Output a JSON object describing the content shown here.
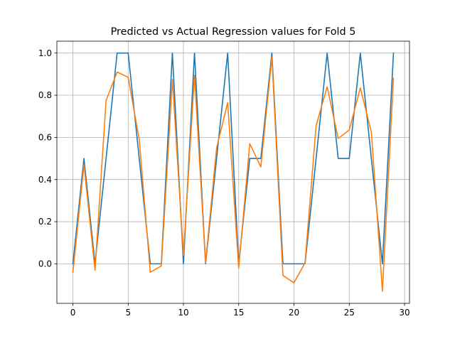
{
  "chart_data": {
    "type": "line",
    "title": "Predicted vs Actual Regression values for Fold 5",
    "xlabel": "",
    "ylabel": "",
    "xlim": [
      -1.45,
      30.45
    ],
    "ylim": [
      -0.1875,
      1.0563
    ],
    "grid": true,
    "x": [
      0,
      1,
      2,
      3,
      4,
      5,
      6,
      7,
      8,
      9,
      10,
      11,
      12,
      13,
      14,
      15,
      16,
      17,
      18,
      19,
      20,
      21,
      22,
      23,
      24,
      25,
      26,
      27,
      28,
      29
    ],
    "x_ticks": [
      0,
      5,
      10,
      15,
      20,
      25,
      30
    ],
    "x_tick_labels": [
      "0",
      "5",
      "10",
      "15",
      "20",
      "25",
      "30"
    ],
    "y_ticks": [
      0.0,
      0.2,
      0.4,
      0.6,
      0.8,
      1.0
    ],
    "y_tick_labels": [
      "0.0",
      "0.2",
      "0.4",
      "0.6",
      "0.8",
      "1.0"
    ],
    "series": [
      {
        "color": "#1f77b4",
        "values": [
          0,
          0.5,
          0,
          0.5,
          1,
          1,
          0.5,
          0,
          0,
          1,
          0,
          1,
          0,
          0.5,
          1,
          0,
          0.5,
          0.5,
          1,
          0,
          0,
          0,
          0.5,
          1,
          0.5,
          0.5,
          1,
          0.5,
          0,
          1
        ]
      },
      {
        "color": "#ff7f0e",
        "values": [
          -0.04,
          0.47,
          -0.03,
          0.775,
          0.91,
          0.885,
          0.59,
          -0.04,
          -0.01,
          0.875,
          0.04,
          0.895,
          0.005,
          0.55,
          0.765,
          -0.02,
          0.57,
          0.46,
          0.98,
          -0.055,
          -0.09,
          0.005,
          0.655,
          0.84,
          0.595,
          0.635,
          0.835,
          0.625,
          -0.13,
          0.88
        ]
      }
    ]
  }
}
